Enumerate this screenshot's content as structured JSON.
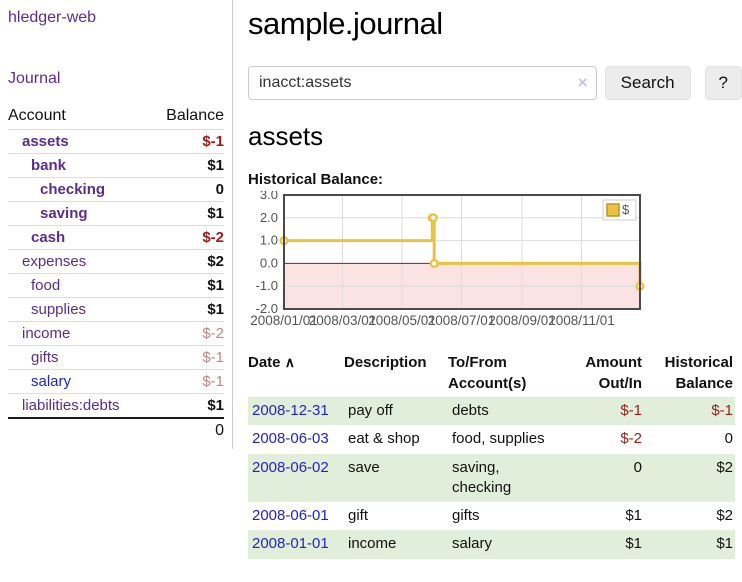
{
  "app": {
    "brand": "hledger-web"
  },
  "sidebar": {
    "journal_link": "Journal",
    "table": {
      "headers": {
        "account": "Account",
        "balance": "Balance"
      },
      "rows": [
        {
          "account": "assets",
          "level": 1,
          "bold": true,
          "link": "purple",
          "balance": "$-1",
          "style": "neg"
        },
        {
          "account": "bank",
          "level": 2,
          "bold": true,
          "link": "purple",
          "balance": "$1",
          "style": "plain"
        },
        {
          "account": "checking",
          "level": 3,
          "bold": true,
          "link": "purple",
          "balance": "0",
          "style": "plain"
        },
        {
          "account": "saving",
          "level": 3,
          "bold": true,
          "link": "purple",
          "balance": "$1",
          "style": "plain"
        },
        {
          "account": "cash",
          "level": 2,
          "bold": true,
          "link": "purple",
          "balance": "$-2",
          "style": "neg"
        },
        {
          "account": "expenses",
          "level": 1,
          "bold": false,
          "link": "purple",
          "balance": "$2",
          "style": "plain"
        },
        {
          "account": "food",
          "level": 2,
          "bold": false,
          "link": "purple",
          "balance": "$1",
          "style": "plain"
        },
        {
          "account": "supplies",
          "level": 2,
          "bold": false,
          "link": "purple",
          "balance": "$1",
          "style": "plain"
        },
        {
          "account": "income",
          "level": 1,
          "bold": false,
          "link": "purple",
          "balance": "$-2",
          "style": "negdim"
        },
        {
          "account": "gifts",
          "level": 2,
          "bold": false,
          "link": "purple",
          "balance": "$-1",
          "style": "negdim"
        },
        {
          "account": "salary",
          "level": 2,
          "bold": false,
          "link": "blue",
          "balance": "$-1",
          "style": "negdim"
        },
        {
          "account": "liabilities:debts",
          "level": 1,
          "bold": false,
          "link": "purple",
          "balance": "$1",
          "style": "plain"
        }
      ],
      "total": "0"
    }
  },
  "header": {
    "title": "sample.journal"
  },
  "search": {
    "value": "inacct:assets",
    "clear_icon": "×",
    "button_label": "Search",
    "help_label": "?"
  },
  "account_page": {
    "heading": "assets",
    "chart_label": "Historical Balance:"
  },
  "chart_data": {
    "type": "line",
    "title": "Historical Balance",
    "step": true,
    "series": [
      {
        "name": "$",
        "color": "#edc240",
        "points": [
          {
            "date": "2008-01-01",
            "d": 0,
            "y": 1
          },
          {
            "date": "2008-06-01",
            "d": 152,
            "y": 2
          },
          {
            "date": "2008-06-02",
            "d": 153,
            "y": 2
          },
          {
            "date": "2008-06-03",
            "d": 154,
            "y": 0
          },
          {
            "date": "2008-12-31",
            "d": 365,
            "y": -1
          }
        ]
      }
    ],
    "x_ticks": [
      {
        "label": "2008/01/01",
        "d": 0
      },
      {
        "label": "2008/03/01",
        "d": 60
      },
      {
        "label": "2008/05/01",
        "d": 121
      },
      {
        "label": "2008/07/01",
        "d": 182
      },
      {
        "label": "2008/09/01",
        "d": 244
      },
      {
        "label": "2008/11/01",
        "d": 305
      }
    ],
    "y_ticks": [
      "3.0",
      "2.0",
      "1.0",
      "0.0",
      "-1.0",
      "-2.0"
    ],
    "ylim": [
      -2,
      3
    ],
    "xlim_days": [
      0,
      365
    ],
    "grid": true,
    "grid_color": "#dcdcdc",
    "border_color": "#4a4a4a",
    "tick_label_color": "#545454",
    "negative_region_color": "#fbe3e3",
    "zero_line_color": "#8b1a1a",
    "legend": {
      "label": "$",
      "position": "top-right"
    }
  },
  "register": {
    "headers": {
      "date": "Date",
      "sort_arrow": "∧",
      "description": "Description",
      "accounts": "To/From Account(s)",
      "amount": "Amount Out/In",
      "balance": "Historical Balance"
    },
    "rows": [
      {
        "date": "2008-12-31",
        "description": "pay off",
        "accounts": "debts",
        "amount": "$-1",
        "amount_neg": true,
        "balance": "$-1",
        "balance_neg": true
      },
      {
        "date": "2008-06-03",
        "description": "eat & shop",
        "accounts": "food, supplies",
        "amount": "$-2",
        "amount_neg": true,
        "balance": "0",
        "balance_neg": false
      },
      {
        "date": "2008-06-02",
        "description": "save",
        "accounts": "saving, checking",
        "amount": "0",
        "amount_neg": false,
        "balance": "$2",
        "balance_neg": false
      },
      {
        "date": "2008-06-01",
        "description": "gift",
        "accounts": "gifts",
        "amount": "$1",
        "amount_neg": false,
        "balance": "$2",
        "balance_neg": false
      },
      {
        "date": "2008-01-01",
        "description": "income",
        "accounts": "salary",
        "amount": "$1",
        "amount_neg": false,
        "balance": "$1",
        "balance_neg": false
      }
    ]
  }
}
